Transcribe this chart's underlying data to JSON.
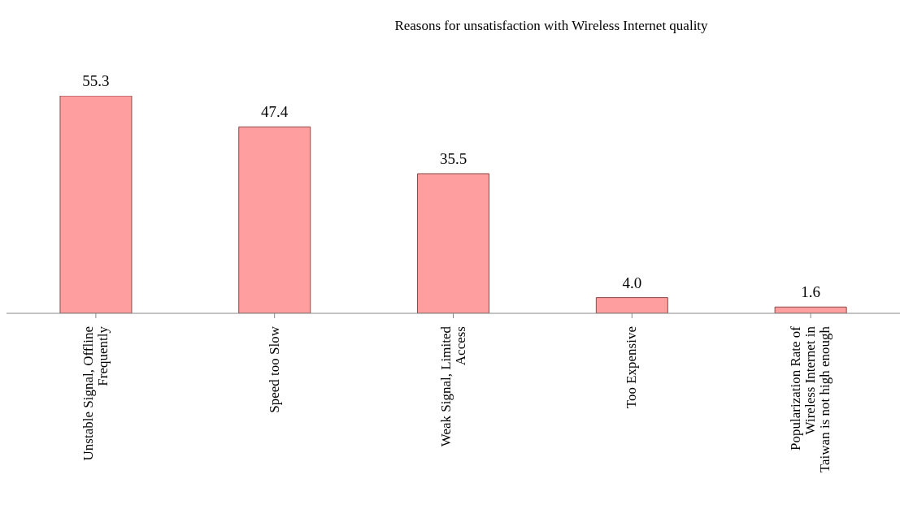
{
  "chart_data": {
    "type": "bar",
    "title": "Reasons for unsatisfaction with Wireless Internet quality",
    "categories": [
      "Unstable Signal, Offline Frequently",
      "Speed too Slow",
      "Weak Signal, Limited Access",
      "Too Expensive",
      "Popularization Rate of Wireless Internet in Taiwan is not high enough"
    ],
    "values": [
      55.3,
      47.4,
      35.5,
      4.0,
      1.6
    ],
    "value_labels": [
      "55.3",
      "47.4",
      "35.5",
      "4.0",
      "1.6"
    ],
    "color": "#ff9e9e",
    "grid": false,
    "legend": false
  }
}
